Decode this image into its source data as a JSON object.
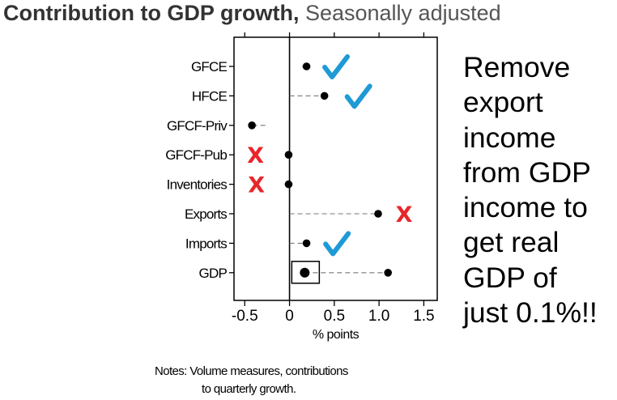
{
  "title": {
    "main": "Contribution to GDP growth",
    "separator": ",",
    "subtitle": "Seasonally adjusted"
  },
  "chart_data": {
    "type": "dot",
    "categories": [
      "GFCE",
      "HFCE",
      "GFCF-Priv",
      "GFCF-Pub",
      "Inventories",
      "Exports",
      "Imports",
      "GDP"
    ],
    "series": [
      {
        "values": [
          0.14,
          0.0,
          -0.27,
          0.0,
          0.0,
          0.0,
          0.0,
          0.17
        ]
      },
      {
        "values": [
          0.19,
          0.39,
          -0.42,
          -0.01,
          -0.01,
          0.99,
          0.19,
          1.1
        ]
      }
    ],
    "xlabel": "% points",
    "xlim": [
      -0.62,
      1.65
    ],
    "xticks": [
      -0.5,
      0,
      0.5,
      1.0,
      1.5
    ],
    "xtick_labels": [
      "-0.5",
      "0",
      "0.5",
      "1.0",
      "1.5"
    ],
    "zero_line": true,
    "highlight_box": {
      "category": "GDP",
      "value": 0.17
    },
    "annotations": [
      {
        "category": "GFCE",
        "mark": "check",
        "x": 0.52,
        "color": "#1e9ad6"
      },
      {
        "category": "HFCE",
        "mark": "check",
        "x": 0.77,
        "color": "#1e9ad6"
      },
      {
        "category": "GFCF-Pub",
        "mark": "cross",
        "text": "X",
        "x": -0.38,
        "color": "#e8262a"
      },
      {
        "category": "Inventories",
        "mark": "cross",
        "text": "X",
        "x": -0.37,
        "color": "#e8262a"
      },
      {
        "category": "Exports",
        "mark": "cross",
        "text": "X",
        "x": 1.28,
        "color": "#e8262a"
      },
      {
        "category": "Imports",
        "mark": "check",
        "x": 0.53,
        "color": "#1e9ad6"
      }
    ],
    "marker_color": "#000000",
    "guide_color": "#777777"
  },
  "note_lines": [
    "Remove",
    "export",
    "income",
    "from GDP",
    "income to",
    "get real",
    "GDP of",
    "just 0.1%!!"
  ],
  "footnote": {
    "line1": "Notes: Volume measures, contributions",
    "line2": "to quarterly growth."
  }
}
